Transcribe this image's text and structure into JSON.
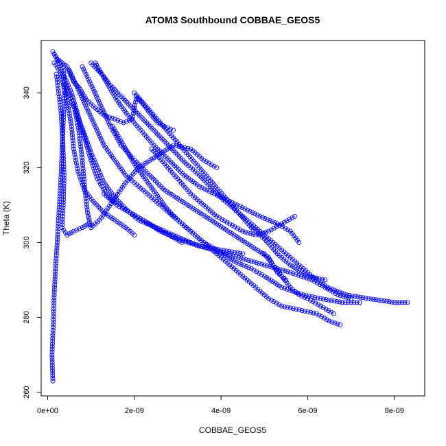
{
  "chart_data": {
    "type": "scatter",
    "title": "ATOM3 Southbound COBBAE_GEOS5",
    "xlabel": "COBBAE_GEOS5",
    "ylabel": "Theta (K)",
    "xlim": [
      -1.5e-10,
      8.7e-09
    ],
    "ylim": [
      259,
      354
    ],
    "x_ticks": [
      0,
      2e-09,
      4e-09,
      6e-09,
      8e-09
    ],
    "x_tick_labels": [
      "0e+00",
      "2e-09",
      "4e-09",
      "6e-09",
      "8e-09"
    ],
    "y_ticks": [
      260,
      280,
      300,
      320,
      340
    ],
    "y_tick_labels": [
      "260",
      "280",
      "300",
      "320",
      "340"
    ],
    "grid": false,
    "legend": "none",
    "color": "#0000ff",
    "series": [
      {
        "values": [
          [
            1.2e-10,
            263
          ],
          [
            1e-10,
            270
          ],
          [
            1.3e-10,
            278
          ],
          [
            1.5e-10,
            286
          ],
          [
            1.8e-10,
            293
          ],
          [
            2.2e-10,
            300
          ],
          [
            2.6e-10,
            308
          ],
          [
            3e-10,
            316
          ],
          [
            3.3e-10,
            324
          ],
          [
            3.6e-10,
            332
          ],
          [
            3.9e-10,
            340
          ],
          [
            3.7e-10,
            346
          ],
          [
            1.2e-10,
            351
          ],
          [
            2.2e-10,
            349
          ],
          [
            4.5e-10,
            347
          ],
          [
            5.2e-10,
            345
          ],
          [
            6e-10,
            343
          ],
          [
            7.5e-10,
            341
          ],
          [
            9e-10,
            338
          ],
          [
            1.1e-09,
            336
          ],
          [
            1.3e-09,
            334
          ],
          [
            1.55e-09,
            333
          ],
          [
            1.75e-09,
            332
          ],
          [
            1.95e-09,
            333
          ],
          [
            2e-09,
            336
          ],
          [
            2.05e-09,
            339
          ],
          [
            2.2e-09,
            337
          ],
          [
            2.4e-09,
            334
          ],
          [
            2.55e-09,
            332
          ],
          [
            2.7e-09,
            331
          ],
          [
            2.9e-09,
            330
          ]
        ]
      },
      {
        "values": [
          [
            1.5e-10,
            348
          ],
          [
            4e-10,
            344
          ],
          [
            5.5e-10,
            340
          ],
          [
            6.5e-10,
            336
          ],
          [
            7.5e-10,
            332
          ],
          [
            8.8e-10,
            328
          ],
          [
            1e-09,
            324
          ],
          [
            1.15e-09,
            320
          ],
          [
            1.3e-09,
            316
          ],
          [
            1.55e-09,
            312
          ],
          [
            1.8e-09,
            309
          ],
          [
            2.1e-09,
            306
          ],
          [
            2.5e-09,
            304
          ],
          [
            2.9e-09,
            302
          ],
          [
            3.3e-09,
            300
          ],
          [
            3.8e-09,
            298
          ],
          [
            4.4e-09,
            296
          ],
          [
            5e-09,
            294
          ],
          [
            5.6e-09,
            292
          ],
          [
            6.1e-09,
            290
          ],
          [
            6.4e-09,
            288
          ],
          [
            6.7e-09,
            286
          ],
          [
            7e-09,
            285
          ]
        ]
      },
      {
        "values": [
          [
            1e-09,
            348
          ],
          [
            1.25e-09,
            345
          ],
          [
            1.45e-09,
            342
          ],
          [
            1.7e-09,
            339
          ],
          [
            1.95e-09,
            336
          ],
          [
            2.2e-09,
            333
          ],
          [
            2.45e-09,
            330
          ],
          [
            2.7e-09,
            327
          ],
          [
            2.95e-09,
            324
          ],
          [
            3.2e-09,
            321
          ],
          [
            3.5e-09,
            318
          ],
          [
            3.75e-09,
            315
          ],
          [
            4e-09,
            312
          ],
          [
            4.3e-09,
            309
          ],
          [
            4.6e-09,
            306
          ],
          [
            4.9e-09,
            303
          ],
          [
            5.2e-09,
            300
          ],
          [
            5.5e-09,
            297
          ],
          [
            5.8e-09,
            294
          ],
          [
            6.1e-09,
            291
          ],
          [
            6.45e-09,
            288
          ],
          [
            6.9e-09,
            286
          ],
          [
            7.4e-09,
            285
          ],
          [
            8e-09,
            284
          ],
          [
            8.3e-09,
            284
          ]
        ]
      },
      {
        "values": [
          [
            3e-10,
            345
          ],
          [
            4.5e-10,
            338
          ],
          [
            5.5e-10,
            331
          ],
          [
            6e-10,
            325
          ],
          [
            7e-10,
            319
          ],
          [
            8.5e-10,
            314
          ],
          [
            1.05e-09,
            311
          ],
          [
            1.3e-09,
            308
          ],
          [
            1.55e-09,
            306
          ],
          [
            1.8e-09,
            304
          ],
          [
            2e-09,
            302
          ]
        ]
      },
      {
        "values": [
          [
            5e-10,
            346
          ],
          [
            7e-10,
            341
          ],
          [
            9e-10,
            336
          ],
          [
            1.1e-09,
            331
          ],
          [
            1.3e-09,
            326
          ],
          [
            1.55e-09,
            322
          ],
          [
            1.8e-09,
            318
          ],
          [
            2.1e-09,
            315
          ],
          [
            2.4e-09,
            312
          ],
          [
            2.7e-09,
            309
          ],
          [
            3e-09,
            306
          ],
          [
            3.3e-09,
            303
          ],
          [
            3.6e-09,
            300
          ],
          [
            3.9e-09,
            297
          ],
          [
            4.2e-09,
            294
          ],
          [
            4.5e-09,
            291
          ],
          [
            4.8e-09,
            288
          ],
          [
            5.1e-09,
            285
          ],
          [
            5.4e-09,
            283
          ],
          [
            5.8e-09,
            282
          ],
          [
            6.2e-09,
            281
          ],
          [
            6.5e-09,
            279
          ],
          [
            6.75e-09,
            278
          ]
        ]
      },
      {
        "values": [
          [
            2e-09,
            340
          ],
          [
            2.3e-09,
            336
          ],
          [
            2.6e-09,
            332
          ],
          [
            2.9e-09,
            328
          ],
          [
            3.2e-09,
            324
          ],
          [
            3.5e-09,
            320
          ],
          [
            3.8e-09,
            316
          ],
          [
            4.1e-09,
            312
          ],
          [
            4.4e-09,
            308
          ],
          [
            4.7e-09,
            304
          ],
          [
            5e-09,
            301
          ],
          [
            5.3e-09,
            297
          ],
          [
            5.6e-09,
            294
          ],
          [
            6e-09,
            291
          ],
          [
            6.4e-09,
            290
          ]
        ]
      },
      {
        "values": [
          [
            8e-10,
            347
          ],
          [
            1.05e-09,
            341
          ],
          [
            1.25e-09,
            336
          ],
          [
            1.45e-09,
            331
          ],
          [
            1.7e-09,
            326
          ],
          [
            2e-09,
            322
          ],
          [
            2.35e-09,
            318
          ],
          [
            2.7e-09,
            314
          ],
          [
            3.1e-09,
            311
          ],
          [
            3.5e-09,
            308
          ],
          [
            3.9e-09,
            305
          ],
          [
            4.3e-09,
            302
          ],
          [
            4.7e-09,
            299
          ],
          [
            5.1e-09,
            296
          ],
          [
            5.3e-09,
            292
          ],
          [
            5.5e-09,
            290
          ]
        ]
      },
      {
        "values": [
          [
            2e-10,
            345
          ],
          [
            3e-10,
            336
          ],
          [
            3.5e-10,
            327
          ],
          [
            3.8e-10,
            318
          ],
          [
            3.6e-10,
            310
          ],
          [
            3.3e-10,
            304
          ],
          [
            4.5e-10,
            302
          ],
          [
            6e-10,
            303
          ],
          [
            8e-10,
            304
          ],
          [
            9.5e-10,
            305
          ]
        ]
      },
      {
        "values": [
          [
            6e-10,
            337
          ],
          [
            7.2e-10,
            330
          ],
          [
            8e-10,
            322
          ],
          [
            8.6e-10,
            314
          ],
          [
            9.2e-10,
            308
          ],
          [
            1e-09,
            304
          ],
          [
            1.2e-09,
            306
          ],
          [
            1.5e-09,
            311
          ],
          [
            1.8e-09,
            316
          ],
          [
            2.1e-09,
            320
          ],
          [
            2.5e-09,
            323
          ],
          [
            2.9e-09,
            326
          ],
          [
            3.3e-09,
            325
          ],
          [
            3.6e-09,
            322
          ],
          [
            3.9e-09,
            320
          ]
        ]
      },
      {
        "values": [
          [
            1.5e-09,
            331
          ],
          [
            1.75e-09,
            326
          ],
          [
            2e-09,
            321
          ],
          [
            2.25e-09,
            317
          ],
          [
            2.5e-09,
            313
          ],
          [
            2.75e-09,
            309
          ],
          [
            3e-09,
            306
          ],
          [
            3.3e-09,
            303
          ],
          [
            3.6e-09,
            300
          ],
          [
            3.9e-09,
            298
          ],
          [
            4.3e-09,
            295
          ],
          [
            4.7e-09,
            293
          ],
          [
            5e-09,
            291
          ],
          [
            5.4e-09,
            288
          ],
          [
            5.9e-09,
            286
          ],
          [
            6.3e-09,
            285
          ],
          [
            6.8e-09,
            284
          ],
          [
            7.2e-09,
            284
          ]
        ]
      },
      {
        "values": [
          [
            2.4e-09,
            325
          ],
          [
            2.7e-09,
            321
          ],
          [
            3e-09,
            317
          ],
          [
            3.3e-09,
            313
          ],
          [
            3.6e-09,
            310
          ],
          [
            3.9e-09,
            307
          ],
          [
            4.2e-09,
            305
          ],
          [
            4.5e-09,
            303
          ],
          [
            4.8e-09,
            302
          ],
          [
            5.1e-09,
            303
          ],
          [
            5.4e-09,
            305
          ],
          [
            5.7e-09,
            307
          ]
        ]
      },
      {
        "values": [
          [
            1.3e-09,
            313
          ],
          [
            1.6e-09,
            310
          ],
          [
            1.9e-09,
            308
          ],
          [
            2.2e-09,
            306
          ],
          [
            2.6e-09,
            303
          ],
          [
            3e-09,
            301
          ],
          [
            3.5e-09,
            299
          ],
          [
            4e-09,
            298
          ],
          [
            4.5e-09,
            297
          ]
        ]
      },
      {
        "values": [
          [
            4e-10,
            342
          ],
          [
            6.5e-10,
            335
          ],
          [
            8.5e-10,
            328
          ],
          [
            1e-09,
            322
          ],
          [
            1.15e-09,
            317
          ],
          [
            1.35e-09,
            313
          ],
          [
            1.6e-09,
            310
          ],
          [
            1.9e-09,
            308
          ],
          [
            2.2e-09,
            306
          ],
          [
            2.5e-09,
            304
          ],
          [
            2.8e-09,
            302
          ],
          [
            3.1e-09,
            300
          ]
        ]
      },
      {
        "values": [
          [
            5e-09,
            297
          ],
          [
            5.2e-09,
            294
          ],
          [
            5.4e-09,
            291
          ],
          [
            5.6e-09,
            288
          ],
          [
            5.8e-09,
            286
          ],
          [
            6e-09,
            285
          ],
          [
            6.3e-09,
            283
          ],
          [
            6.6e-09,
            281
          ]
        ]
      },
      {
        "values": [
          [
            1.1e-09,
            348
          ],
          [
            1.35e-09,
            343
          ],
          [
            1.6e-09,
            338
          ],
          [
            1.85e-09,
            334
          ],
          [
            2.15e-09,
            330
          ],
          [
            2.45e-09,
            326
          ],
          [
            2.8e-09,
            322
          ],
          [
            3.15e-09,
            318
          ],
          [
            3.5e-09,
            315
          ],
          [
            3.85e-09,
            313
          ],
          [
            4.2e-09,
            311
          ],
          [
            4.55e-09,
            309
          ],
          [
            4.9e-09,
            307
          ],
          [
            5.3e-09,
            305
          ],
          [
            5.6e-09,
            303
          ],
          [
            5.8e-09,
            300
          ]
        ]
      }
    ]
  }
}
